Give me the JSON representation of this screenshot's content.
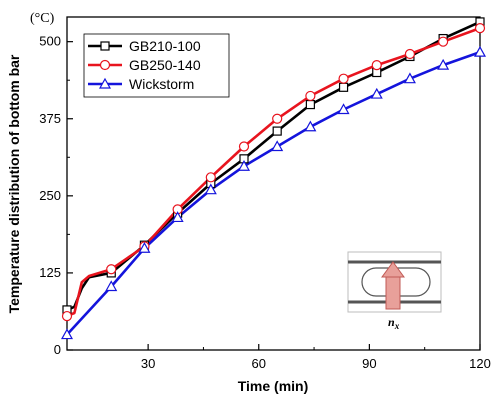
{
  "chart_data": {
    "type": "line",
    "xlabel": "Time (min)",
    "ylabel": "Temperature distribution of bottom bar",
    "y_unit": "(°C)",
    "xlim": [
      8,
      120
    ],
    "ylim": [
      0,
      540
    ],
    "xticks": [
      30,
      60,
      90,
      120
    ],
    "yticks": [
      0,
      125,
      250,
      375,
      500
    ],
    "grid": false,
    "legend_placement": "top-left",
    "series": [
      {
        "name": "GB210-100",
        "color": "#000000",
        "marker": "square",
        "x": [
          8,
          10,
          12,
          14,
          20,
          29,
          38,
          47,
          56,
          65,
          74,
          83,
          92,
          101,
          110,
          120
        ],
        "y": [
          65,
          70,
          100,
          118,
          125,
          170,
          222,
          270,
          310,
          355,
          398,
          426,
          450,
          476,
          505,
          532
        ],
        "markers_x": [
          8,
          20,
          29,
          38,
          47,
          56,
          65,
          74,
          83,
          92,
          101,
          110,
          120
        ]
      },
      {
        "name": "GB250-140",
        "color": "#e8141e",
        "marker": "circle",
        "x": [
          8,
          10,
          12,
          14,
          20,
          29,
          38,
          47,
          56,
          65,
          74,
          83,
          92,
          101,
          110,
          120
        ],
        "y": [
          55,
          60,
          110,
          120,
          131,
          168,
          228,
          280,
          330,
          375,
          412,
          440,
          462,
          480,
          500,
          522
        ],
        "markers_x": [
          8,
          20,
          29,
          38,
          47,
          56,
          65,
          74,
          83,
          92,
          101,
          110,
          120
        ]
      },
      {
        "name": "Wickstorm",
        "color": "#1414dc",
        "marker": "triangle",
        "x": [
          8,
          20,
          29,
          38,
          47,
          56,
          65,
          74,
          83,
          92,
          101,
          110,
          120
        ],
        "y": [
          25,
          103,
          165,
          215,
          260,
          298,
          330,
          362,
          390,
          415,
          440,
          462,
          483
        ],
        "markers_x": [
          8,
          20,
          29,
          38,
          47,
          56,
          65,
          74,
          83,
          92,
          101,
          110,
          120
        ]
      }
    ],
    "inset": {
      "label": "n",
      "label_sub": "x"
    }
  }
}
